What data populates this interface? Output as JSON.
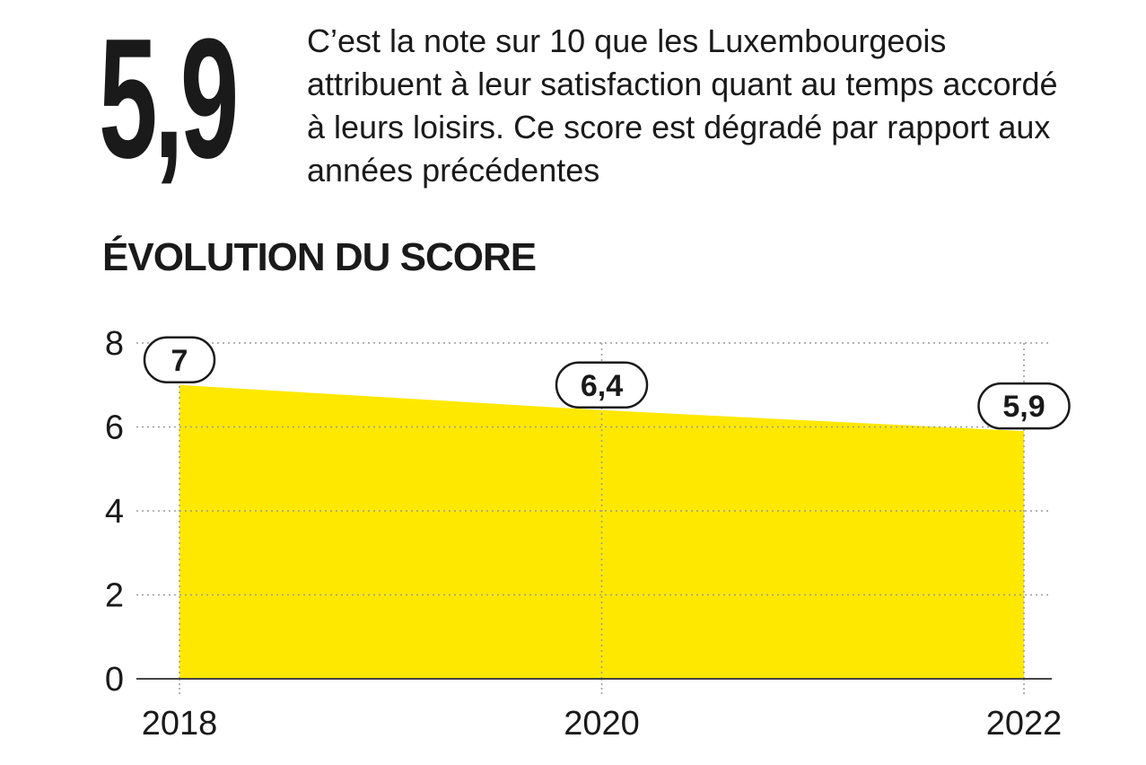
{
  "headline": {
    "value": "5,9",
    "text": "C’est la note sur 10 que les Luxembourgeois attribuent à leur satisfaction quant au temps accordé à leurs loisirs. Ce score est dégradé par rapport aux années précédentes"
  },
  "section_title": "ÉVOLUTION DU SCORE",
  "colors": {
    "area_fill": "#ffe800",
    "text": "#1a1a1a",
    "grid": "#9a9a9a"
  },
  "chart_data": {
    "type": "area",
    "x": [
      2018,
      2020,
      2022
    ],
    "x_tick_labels": [
      "2018",
      "2020",
      "2022"
    ],
    "series": [
      {
        "values": [
          7,
          6.4,
          5.9
        ]
      }
    ],
    "data_labels": [
      "7",
      "6,4",
      "5,9"
    ],
    "y_ticks": [
      0,
      2,
      4,
      6,
      8
    ],
    "y_tick_labels": [
      "0",
      "2",
      "4",
      "6",
      "8"
    ],
    "ylim": [
      0,
      8
    ],
    "grid": true,
    "grid_style": "dotted",
    "title": "",
    "xlabel": "",
    "ylabel": ""
  }
}
